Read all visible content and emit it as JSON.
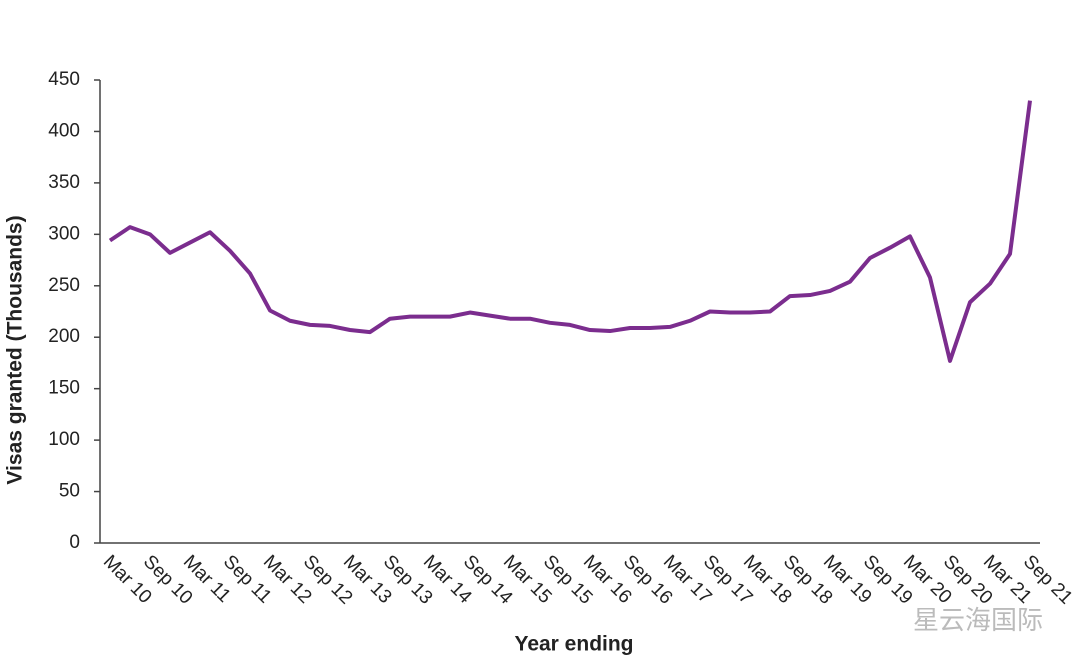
{
  "chart_data": {
    "type": "line",
    "x_label": "Year ending",
    "y_label": "Visas granted (Thousands)",
    "watermark": "星云海国际",
    "categories": [
      "Mar 10",
      null,
      "Sep 10",
      null,
      "Mar 11",
      null,
      "Sep 11",
      null,
      "Mar 12",
      null,
      "Sep 12",
      null,
      "Mar 13",
      null,
      "Sep 13",
      null,
      "Mar 14",
      null,
      "Sep 14",
      null,
      "Mar 15",
      null,
      "Sep 15",
      null,
      "Mar 16",
      null,
      "Sep 16",
      null,
      "Mar 17",
      null,
      "Sep 17",
      null,
      "Mar 18",
      null,
      "Sep 18",
      null,
      "Mar 19",
      null,
      "Sep 19",
      null,
      "Mar 20",
      null,
      "Sep 20",
      null,
      "Mar 21",
      null,
      "Sep 21"
    ],
    "series": [
      {
        "name": "Visas granted",
        "color": "#7b2d8e",
        "values": [
          294,
          307,
          300,
          282,
          292,
          302,
          284,
          262,
          226,
          216,
          212,
          211,
          207,
          205,
          218,
          220,
          220,
          220,
          224,
          221,
          218,
          218,
          214,
          212,
          207,
          206,
          209,
          209,
          210,
          216,
          225,
          224,
          224,
          225,
          240,
          241,
          245,
          254,
          277,
          287,
          298,
          258,
          177,
          234,
          252,
          281,
          430
        ]
      }
    ],
    "ylim": [
      0,
      450
    ],
    "yticks": [
      0,
      50,
      100,
      150,
      200,
      250,
      300,
      350,
      400,
      450
    ],
    "grid": false
  }
}
